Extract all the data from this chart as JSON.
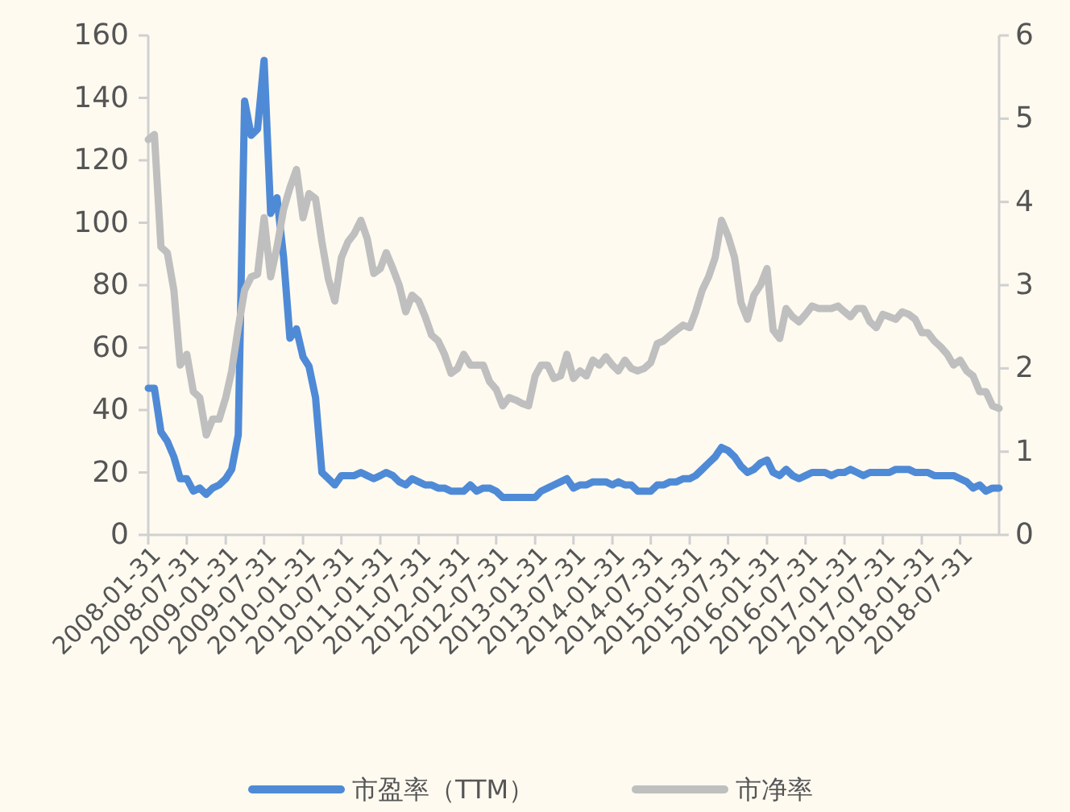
{
  "chart_data": {
    "type": "line",
    "legend": "bottom",
    "x": [
      "2008-01-31",
      "2008-02-29",
      "2008-03-31",
      "2008-04-30",
      "2008-05-31",
      "2008-06-30",
      "2008-07-31",
      "2008-08-31",
      "2008-09-30",
      "2008-10-31",
      "2008-11-30",
      "2008-12-31",
      "2009-01-31",
      "2009-02-28",
      "2009-03-31",
      "2009-04-30",
      "2009-05-31",
      "2009-06-30",
      "2009-07-31",
      "2009-08-31",
      "2009-09-30",
      "2009-10-31",
      "2009-11-30",
      "2009-12-31",
      "2010-01-31",
      "2010-02-28",
      "2010-03-31",
      "2010-04-30",
      "2010-05-31",
      "2010-06-30",
      "2010-07-31",
      "2010-08-31",
      "2010-09-30",
      "2010-10-31",
      "2010-11-30",
      "2010-12-31",
      "2011-01-31",
      "2011-02-28",
      "2011-03-31",
      "2011-04-30",
      "2011-05-31",
      "2011-06-30",
      "2011-07-31",
      "2011-08-31",
      "2011-09-30",
      "2011-10-31",
      "2011-11-30",
      "2011-12-31",
      "2012-01-31",
      "2012-02-29",
      "2012-03-31",
      "2012-04-30",
      "2012-05-31",
      "2012-06-30",
      "2012-07-31",
      "2012-08-31",
      "2012-09-30",
      "2012-10-31",
      "2012-11-30",
      "2012-12-31",
      "2013-01-31",
      "2013-02-28",
      "2013-03-31",
      "2013-04-30",
      "2013-05-31",
      "2013-06-30",
      "2013-07-31",
      "2013-08-31",
      "2013-09-30",
      "2013-10-31",
      "2013-11-30",
      "2013-12-31",
      "2014-01-31",
      "2014-02-28",
      "2014-03-31",
      "2014-04-30",
      "2014-05-31",
      "2014-06-30",
      "2014-07-31",
      "2014-08-31",
      "2014-09-30",
      "2014-10-31",
      "2014-11-30",
      "2014-12-31",
      "2015-01-31",
      "2015-02-28",
      "2015-03-31",
      "2015-04-30",
      "2015-05-31",
      "2015-06-30",
      "2015-07-31",
      "2015-08-31",
      "2015-09-30",
      "2015-10-31",
      "2015-11-30",
      "2015-12-31",
      "2016-01-31",
      "2016-02-29",
      "2016-03-31",
      "2016-04-30",
      "2016-05-31",
      "2016-06-30",
      "2016-07-31",
      "2016-08-31",
      "2016-09-30",
      "2016-10-31",
      "2016-11-30",
      "2016-12-31",
      "2017-01-31",
      "2017-02-28",
      "2017-03-31",
      "2017-04-30",
      "2017-05-31",
      "2017-06-30",
      "2017-07-31",
      "2017-08-31",
      "2017-09-30",
      "2017-10-31",
      "2017-11-30",
      "2017-12-31",
      "2018-01-31",
      "2018-02-28",
      "2018-03-31",
      "2018-04-30",
      "2018-05-31",
      "2018-06-30",
      "2018-07-31",
      "2018-08-31",
      "2018-09-30",
      "2018-10-31",
      "2018-11-30",
      "2018-12-31",
      "2019-01-31"
    ],
    "xlim": [
      "2008-01-31",
      "2019-01-31"
    ],
    "xticks": [
      "2008-01-31",
      "2008-07-31",
      "2009-01-31",
      "2009-07-31",
      "2010-01-31",
      "2010-07-31",
      "2011-01-31",
      "2011-07-31",
      "2012-01-31",
      "2012-07-31",
      "2013-01-31",
      "2013-07-31",
      "2014-01-31",
      "2014-07-31",
      "2015-01-31",
      "2015-07-31",
      "2016-01-31",
      "2016-07-31",
      "2017-01-31",
      "2017-07-31",
      "2018-01-31",
      "2018-07-31"
    ],
    "ylim": [
      0,
      160
    ],
    "yticks": [
      0,
      20,
      40,
      60,
      80,
      100,
      120,
      140,
      160
    ],
    "y2lim": [
      0,
      6
    ],
    "y2ticks": [
      0,
      1,
      2,
      3,
      4,
      5,
      6
    ],
    "series": [
      {
        "name": "市盈率（TTM）",
        "color": "#4f8ad6",
        "values": [
          47,
          47,
          33,
          30,
          25,
          18,
          18,
          14,
          15,
          13,
          15,
          16,
          18,
          21,
          32,
          139,
          128,
          130,
          152,
          103,
          108,
          89,
          63,
          66,
          57,
          54,
          44,
          20,
          18,
          16,
          19,
          19,
          19,
          20,
          19,
          18,
          19,
          20,
          19,
          17,
          16,
          18,
          17,
          16,
          16,
          15,
          15,
          14,
          14,
          14,
          16,
          14,
          15,
          15,
          14,
          12,
          12,
          12,
          12,
          12,
          12,
          14,
          15,
          16,
          17,
          18,
          15,
          16,
          16,
          17,
          17,
          17,
          16,
          17,
          16,
          16,
          14,
          14,
          14,
          16,
          16,
          17,
          17,
          18,
          18,
          19,
          21,
          23,
          25,
          28,
          27,
          25,
          22,
          20,
          21,
          23,
          24,
          20,
          19,
          21,
          19,
          18,
          19,
          20,
          20,
          20,
          19,
          20,
          20,
          21,
          20,
          19,
          20,
          20,
          20,
          20,
          21,
          21,
          21,
          20,
          20,
          20,
          19,
          19,
          19,
          19,
          18,
          17,
          15,
          16,
          14,
          15,
          15
        ]
      },
      {
        "name": "市净率",
        "color": "#bfbfbf",
        "axis": "y2",
        "values": [
          4.75,
          4.81,
          3.46,
          3.39,
          2.94,
          2.04,
          2.17,
          1.72,
          1.65,
          1.2,
          1.39,
          1.39,
          1.65,
          1.97,
          2.49,
          2.94,
          3.1,
          3.13,
          3.81,
          3.1,
          3.46,
          3.91,
          4.17,
          4.39,
          3.81,
          4.1,
          4.04,
          3.52,
          3.07,
          2.81,
          3.33,
          3.52,
          3.62,
          3.78,
          3.56,
          3.14,
          3.2,
          3.39,
          3.2,
          3.0,
          2.68,
          2.88,
          2.81,
          2.62,
          2.4,
          2.33,
          2.17,
          1.94,
          2.0,
          2.17,
          2.04,
          2.04,
          2.04,
          1.84,
          1.75,
          1.55,
          1.65,
          1.62,
          1.58,
          1.55,
          1.91,
          2.04,
          2.04,
          1.88,
          1.91,
          2.17,
          1.88,
          1.97,
          1.91,
          2.1,
          2.04,
          2.14,
          2.04,
          1.97,
          2.1,
          2.0,
          1.97,
          2.0,
          2.07,
          2.3,
          2.33,
          2.4,
          2.46,
          2.52,
          2.49,
          2.68,
          2.94,
          3.1,
          3.33,
          3.78,
          3.59,
          3.33,
          2.79,
          2.59,
          2.88,
          3.0,
          3.2,
          2.46,
          2.36,
          2.72,
          2.62,
          2.56,
          2.65,
          2.75,
          2.72,
          2.72,
          2.72,
          2.75,
          2.68,
          2.62,
          2.72,
          2.72,
          2.56,
          2.49,
          2.65,
          2.62,
          2.59,
          2.68,
          2.65,
          2.59,
          2.43,
          2.43,
          2.33,
          2.26,
          2.17,
          2.04,
          2.1,
          1.97,
          1.91,
          1.72,
          1.72,
          1.55,
          1.52
        ]
      }
    ]
  }
}
